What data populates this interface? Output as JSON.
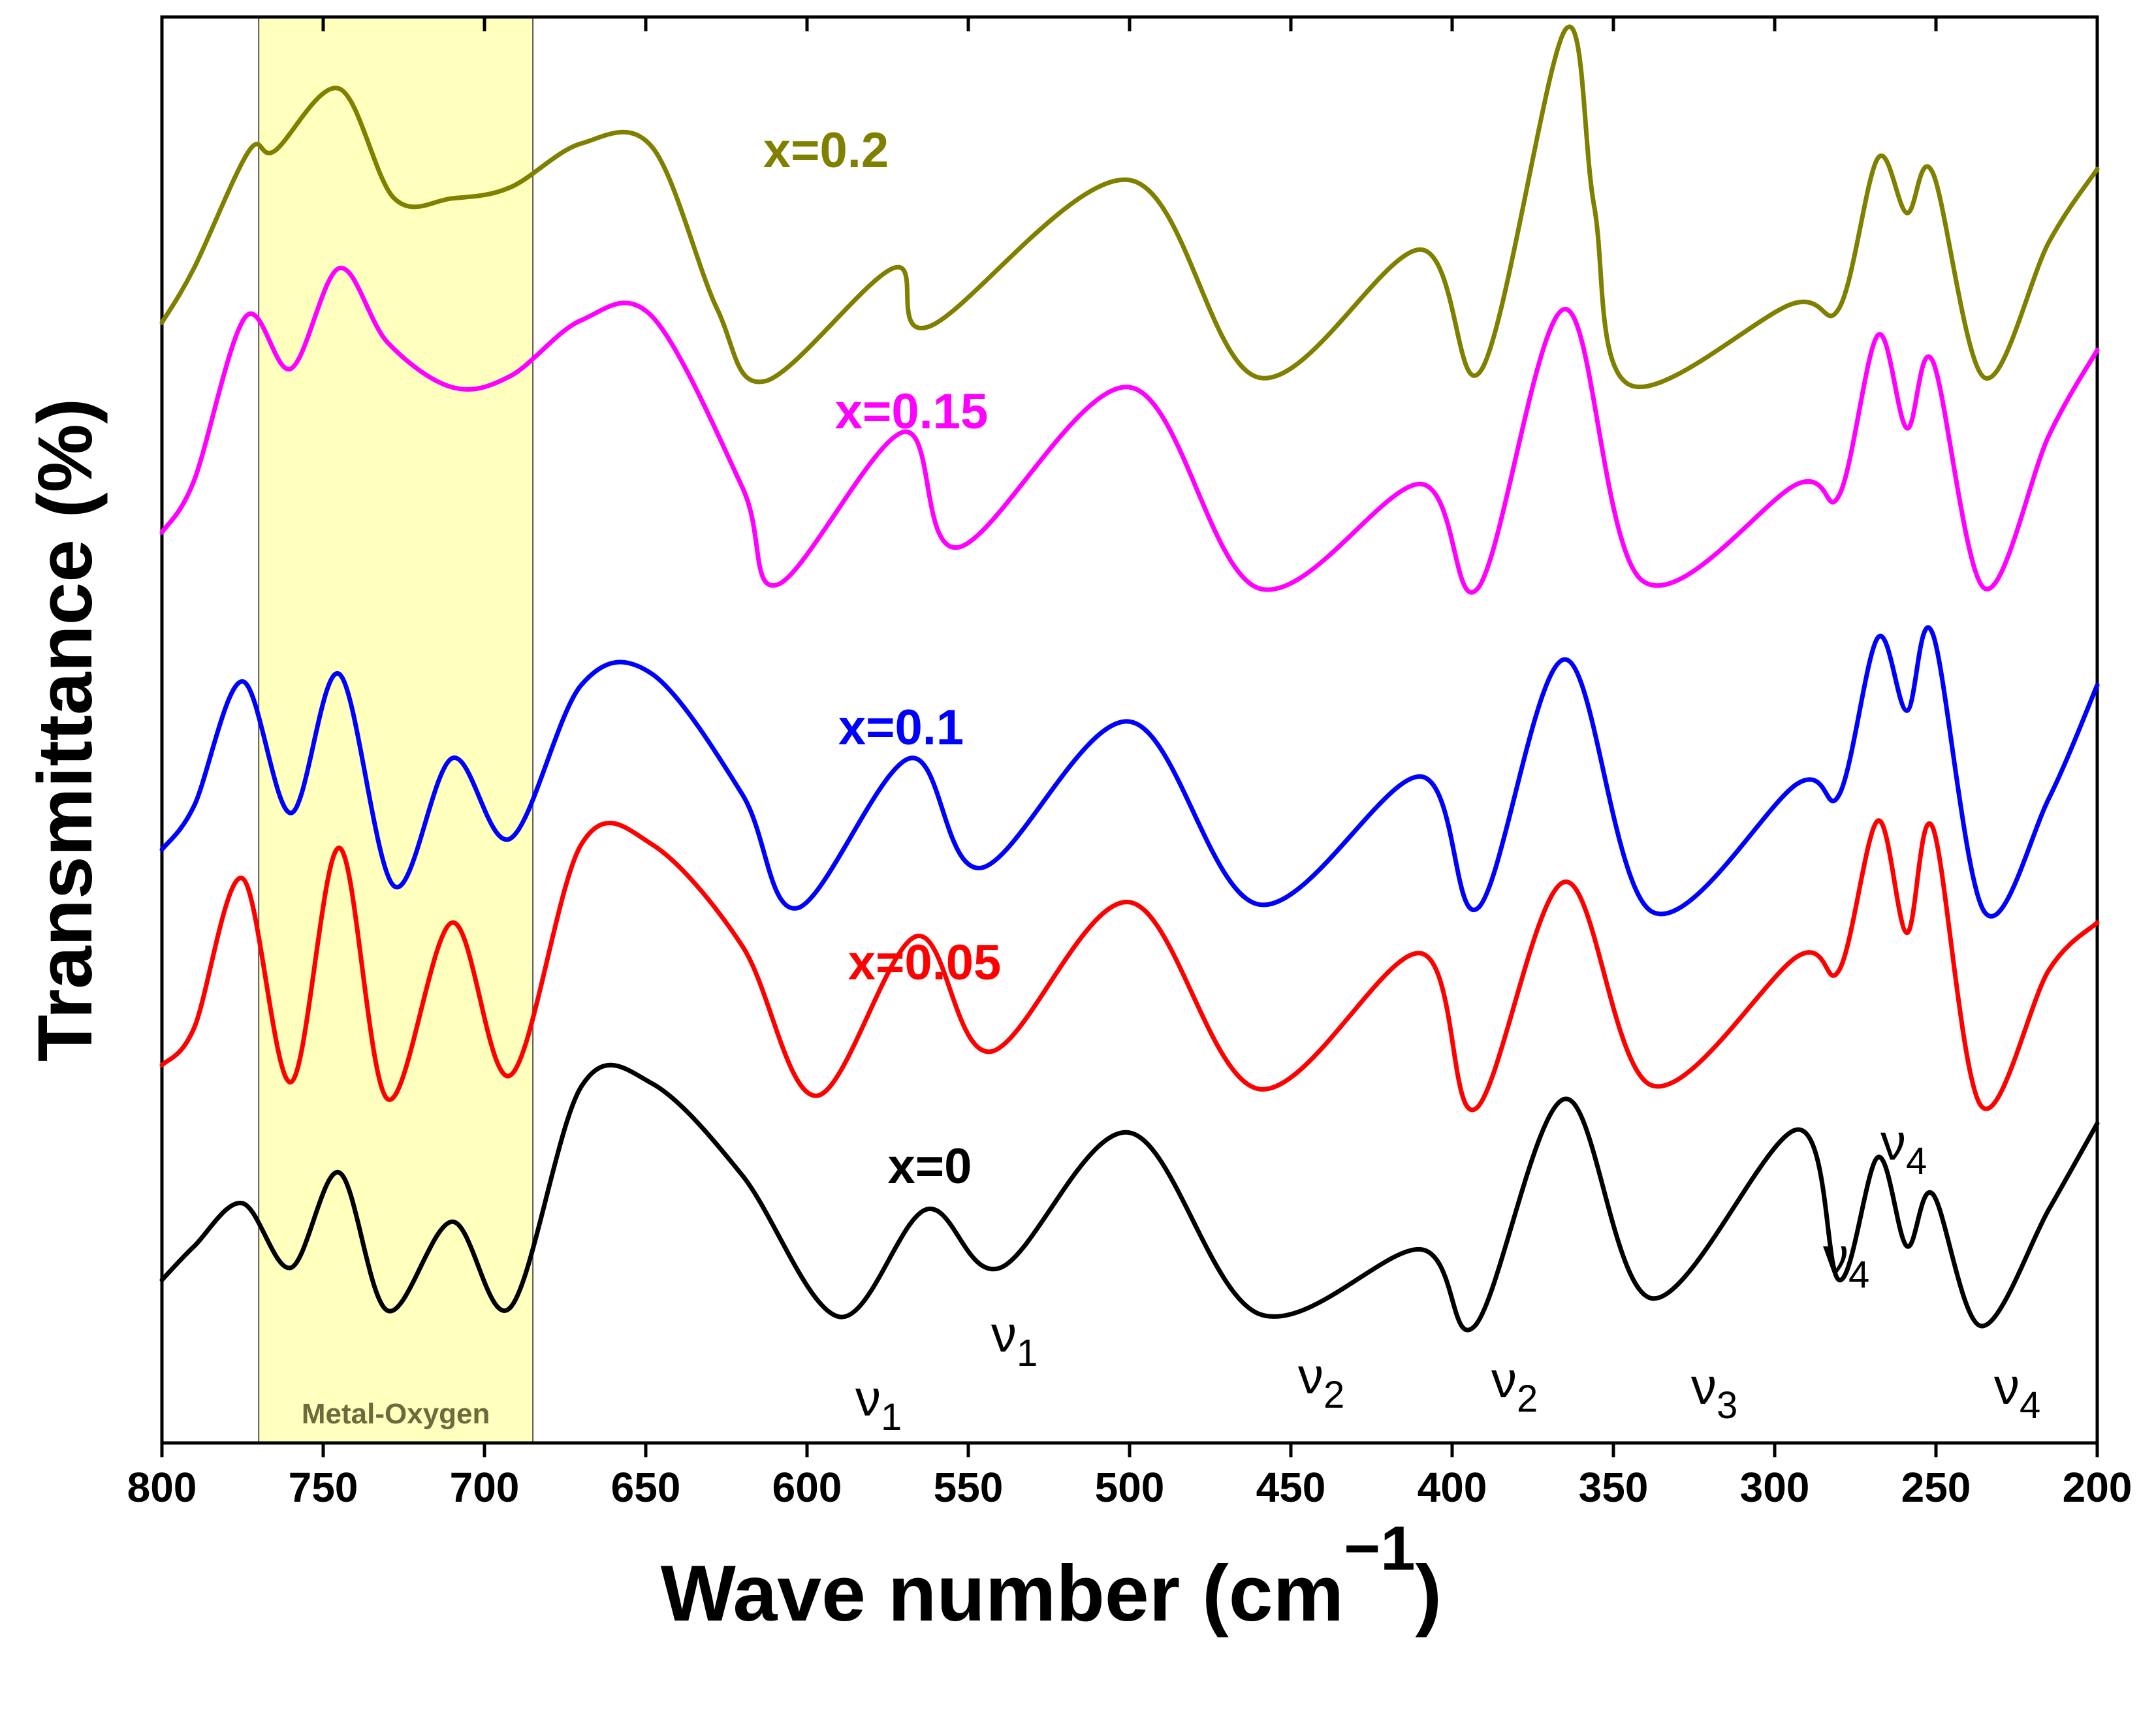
{
  "chart_data": {
    "type": "line",
    "title": "",
    "xlabel": "Wave number (cm",
    "xlabel_superscript": "−1",
    "xlabel_close": ")",
    "ylabel": "Transmittance (%)",
    "xlim": [
      800,
      200
    ],
    "x_reversed": true,
    "y_ticks_shown": false,
    "grid": false,
    "x_ticks": [
      "800",
      "750",
      "700",
      "650",
      "600",
      "550",
      "500",
      "450",
      "400",
      "350",
      "300",
      "250",
      "200"
    ],
    "highlight_band": {
      "x_range": [
        770,
        685
      ],
      "label": "Metal-Oxygen",
      "color": "#ffffb3"
    },
    "series": [
      {
        "name": "x=0",
        "color": "#000000",
        "x": [
          800,
          790,
          775,
          760,
          745,
          730,
          710,
          692,
          670,
          648,
          620,
          590,
          563,
          540,
          500,
          460,
          410,
          393,
          365,
          338,
          293,
          280,
          268,
          259,
          251,
          236,
          215,
          200
        ],
        "values": [
          0.18,
          0.29,
          0.43,
          0.22,
          0.53,
          0.08,
          0.37,
          0.09,
          0.81,
          0.82,
          0.52,
          0.06,
          0.41,
          0.22,
          0.66,
          0.07,
          0.28,
          0.03,
          0.77,
          0.12,
          0.67,
          0.18,
          0.58,
          0.29,
          0.46,
          0.03,
          0.41,
          0.69
        ]
      },
      {
        "name": "x=0.05",
        "color": "#ff0000",
        "x": [
          800,
          790,
          775,
          760,
          745,
          730,
          710,
          692,
          670,
          648,
          620,
          597,
          566,
          543,
          500,
          460,
          410,
          393,
          365,
          338,
          293,
          280,
          268,
          259,
          251,
          236,
          215,
          200
        ],
        "values": [
          0.18,
          0.29,
          0.73,
          0.13,
          0.82,
          0.08,
          0.6,
          0.15,
          0.83,
          0.83,
          0.53,
          0.09,
          0.56,
          0.22,
          0.66,
          0.11,
          0.51,
          0.05,
          0.72,
          0.12,
          0.5,
          0.46,
          0.9,
          0.57,
          0.88,
          0.06,
          0.46,
          0.6
        ]
      },
      {
        "name": "x=0.1",
        "color": "#0000ff",
        "x": [
          800,
          790,
          775,
          760,
          745,
          728,
          710,
          692,
          670,
          648,
          620,
          603,
          568,
          546,
          500,
          460,
          410,
          392,
          365,
          338,
          293,
          280,
          268,
          259,
          251,
          235,
          215,
          200
        ],
        "values": [
          0.18,
          0.3,
          0.64,
          0.28,
          0.66,
          0.08,
          0.43,
          0.21,
          0.63,
          0.66,
          0.33,
          0.02,
          0.43,
          0.13,
          0.53,
          0.03,
          0.38,
          0.02,
          0.7,
          0.01,
          0.36,
          0.33,
          0.76,
          0.56,
          0.77,
          0.01,
          0.32,
          0.63
        ]
      },
      {
        "name": "x=0.15",
        "color": "#ff00ff",
        "x": [
          800,
          790,
          774,
          760,
          745,
          730,
          710,
          692,
          670,
          648,
          620,
          609,
          570,
          553,
          500,
          460,
          410,
          392,
          365,
          341,
          293,
          280,
          268,
          259,
          251,
          235,
          215,
          200
        ],
        "values": [
          0.18,
          0.32,
          0.76,
          0.62,
          0.89,
          0.69,
          0.57,
          0.6,
          0.75,
          0.76,
          0.3,
          0.04,
          0.45,
          0.14,
          0.57,
          0.03,
          0.31,
          0.03,
          0.78,
          0.05,
          0.31,
          0.28,
          0.71,
          0.46,
          0.64,
          0.03,
          0.44,
          0.67
        ]
      },
      {
        "name": "x=0.2",
        "color": "#808000",
        "x": [
          800,
          790,
          773,
          765,
          745,
          728,
          710,
          692,
          670,
          648,
          628,
          613,
          573,
          562,
          500,
          460,
          410,
          391,
          365,
          356,
          345,
          295,
          280,
          268,
          259,
          251,
          235,
          215,
          200
        ],
        "values": [
          0.18,
          0.33,
          0.65,
          0.65,
          0.82,
          0.52,
          0.52,
          0.55,
          0.67,
          0.66,
          0.22,
          0.02,
          0.33,
          0.17,
          0.57,
          0.03,
          0.38,
          0.05,
          0.98,
          0.5,
          0.01,
          0.23,
          0.22,
          0.63,
          0.48,
          0.59,
          0.03,
          0.4,
          0.6
        ]
      }
    ],
    "annotations": [
      {
        "base": "ν",
        "sub": "1",
        "x": 595
      },
      {
        "base": "ν",
        "sub": "1",
        "x": 536
      },
      {
        "base": "ν",
        "sub": "2",
        "x": 457
      },
      {
        "base": "ν",
        "sub": "2",
        "x": 394
      },
      {
        "base": "ν",
        "sub": "3",
        "x": 338
      },
      {
        "base": "ν",
        "sub": "4",
        "x": 284
      },
      {
        "base": "ν",
        "sub": "4",
        "x": 262
      },
      {
        "base": "ν",
        "sub": "4",
        "x": 234
      }
    ]
  }
}
